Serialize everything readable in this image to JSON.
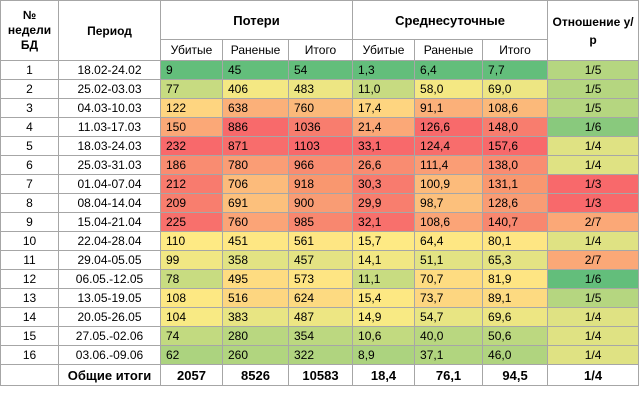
{
  "header": {
    "week_no": "№ недели БД",
    "period": "Период",
    "losses": "Потери",
    "daily": "Среднесуточные",
    "ratio": "Отношение у/р",
    "killed": "Убитые",
    "wounded": "Раненые",
    "total": "Итого"
  },
  "colors": {
    "green": "#63be7b",
    "yellow": "#ffeb84",
    "red": "#f8696b"
  },
  "rows": [
    {
      "week": "1",
      "period": "18.02-24.02",
      "killed": "9",
      "wounded": "45",
      "total": "54",
      "d_killed": "1,3",
      "d_wounded": "6,4",
      "d_total": "7,7",
      "ratio": "1/5",
      "bg": [
        "#63be7b",
        "#63be7b",
        "#63be7b",
        "#63be7b",
        "#63be7b",
        "#63be7b",
        "#b5d680"
      ]
    },
    {
      "week": "2",
      "period": "25.02-03.03",
      "killed": "77",
      "wounded": "406",
      "total": "483",
      "d_killed": "11,0",
      "d_wounded": "58,0",
      "d_total": "69,0",
      "ratio": "1/5",
      "bg": [
        "#c7db81",
        "#f4e883",
        "#ede683",
        "#c7db81",
        "#f4e883",
        "#ede683",
        "#b5d680"
      ]
    },
    {
      "week": "3",
      "period": "04.03-10.03",
      "killed": "122",
      "wounded": "638",
      "total": "760",
      "d_killed": "17,4",
      "d_wounded": "91,1",
      "d_total": "108,6",
      "ratio": "1/5",
      "bg": [
        "#fed580",
        "#fbb079",
        "#fbb97a",
        "#fed580",
        "#fbb079",
        "#fbb97a",
        "#b5d680"
      ]
    },
    {
      "week": "4",
      "period": "11.03-17.03",
      "killed": "150",
      "wounded": "886",
      "total": "1036",
      "d_killed": "21,4",
      "d_wounded": "126,6",
      "d_total": "148,0",
      "ratio": "1/6",
      "bg": [
        "#fba877",
        "#f86a6b",
        "#f87d6e",
        "#fba877",
        "#f86a6b",
        "#f87d6e",
        "#89c97d"
      ]
    },
    {
      "week": "5",
      "period": "18.03-24.03",
      "killed": "232",
      "wounded": "871",
      "total": "1103",
      "d_killed": "33,1",
      "d_wounded": "124,4",
      "d_total": "157,6",
      "ratio": "1/4",
      "bg": [
        "#f8696b",
        "#f86d6c",
        "#f8696b",
        "#f8696b",
        "#f86d6c",
        "#f8696b",
        "#dfe283"
      ]
    },
    {
      "week": "6",
      "period": "25.03-31.03",
      "killed": "186",
      "wounded": "780",
      "total": "966",
      "d_killed": "26,6",
      "d_wounded": "111,4",
      "d_total": "138,0",
      "ratio": "1/4",
      "bg": [
        "#f98c71",
        "#fa9d75",
        "#f98c71",
        "#f98c71",
        "#fa9d75",
        "#f98c71",
        "#dfe283"
      ]
    },
    {
      "week": "7",
      "period": "01.04-07.04",
      "killed": "212",
      "wounded": "706",
      "total": "918",
      "d_killed": "30,3",
      "d_wounded": "100,9",
      "d_total": "131,1",
      "ratio": "1/3",
      "bg": [
        "#f87b6e",
        "#fcbb7b",
        "#f9976f",
        "#f87b6e",
        "#fcbb7b",
        "#f9976f",
        "#f8696b"
      ]
    },
    {
      "week": "8",
      "period": "08.04-14.04",
      "killed": "209",
      "wounded": "691",
      "total": "900",
      "d_killed": "29,9",
      "d_wounded": "98,7",
      "d_total": "128,6",
      "ratio": "1/3",
      "bg": [
        "#f87e6e",
        "#fcc07c",
        "#f99c74",
        "#f87e6e",
        "#fcc07c",
        "#f99c74",
        "#f8696b"
      ]
    },
    {
      "week": "9",
      "period": "15.04-21.04",
      "killed": "225",
      "wounded": "760",
      "total": "985",
      "d_killed": "32,1",
      "d_wounded": "108,6",
      "d_total": "140,7",
      "ratio": "2/7",
      "bg": [
        "#f8706c",
        "#fba477",
        "#f8876f",
        "#f8706c",
        "#fba477",
        "#f8876f",
        "#fba877"
      ]
    },
    {
      "week": "10",
      "period": "22.04-28.04",
      "killed": "110",
      "wounded": "451",
      "total": "561",
      "d_killed": "15,7",
      "d_wounded": "64,4",
      "d_total": "80,1",
      "ratio": "1/4",
      "bg": [
        "#feea84",
        "#fee783",
        "#fee683",
        "#feea84",
        "#fee783",
        "#fee683",
        "#dfe283"
      ]
    },
    {
      "week": "11",
      "period": "29.04-05.05",
      "killed": "99",
      "wounded": "358",
      "total": "457",
      "d_killed": "14,1",
      "d_wounded": "51,1",
      "d_total": "65,3",
      "ratio": "2/7",
      "bg": [
        "#f1e783",
        "#e2e383",
        "#e4e383",
        "#f1e783",
        "#e2e383",
        "#e4e383",
        "#fba877"
      ]
    },
    {
      "week": "12",
      "period": "06.05.-12.05",
      "killed": "78",
      "wounded": "495",
      "total": "573",
      "d_killed": "11,1",
      "d_wounded": "70,7",
      "d_total": "81,9",
      "ratio": "1/6",
      "bg": [
        "#c8dc81",
        "#fedc81",
        "#fee583",
        "#c8dc81",
        "#fedc81",
        "#fee583",
        "#63be7b"
      ]
    },
    {
      "week": "13",
      "period": "13.05-19.05",
      "killed": "108",
      "wounded": "516",
      "total": "624",
      "d_killed": "15,4",
      "d_wounded": "73,7",
      "d_total": "89,1",
      "ratio": "1/5",
      "bg": [
        "#fde883",
        "#fdd680",
        "#fdda81",
        "#fde883",
        "#fdd680",
        "#fdda81",
        "#b5d680"
      ]
    },
    {
      "week": "14",
      "period": "20.05-26.05",
      "killed": "104",
      "wounded": "383",
      "total": "487",
      "d_killed": "14,9",
      "d_wounded": "54,7",
      "d_total": "69,6",
      "ratio": "1/4",
      "bg": [
        "#f8ea84",
        "#e8e583",
        "#ede683",
        "#f8ea84",
        "#e8e583",
        "#ede683",
        "#dfe283"
      ]
    },
    {
      "week": "15",
      "period": "27.05.-02.06",
      "killed": "74",
      "wounded": "280",
      "total": "354",
      "d_killed": "10,6",
      "d_wounded": "40,0",
      "d_total": "50,6",
      "ratio": "1/4",
      "bg": [
        "#c2da80",
        "#b9d780",
        "#bcd880",
        "#c2da80",
        "#b9d780",
        "#bcd880",
        "#dfe283"
      ]
    },
    {
      "week": "16",
      "period": "03.06.-09.06",
      "killed": "62",
      "wounded": "260",
      "total": "322",
      "d_killed": "8,9",
      "d_wounded": "37,1",
      "d_total": "46,0",
      "ratio": "1/4",
      "bg": [
        "#acd37f",
        "#b1d57f",
        "#b0d47f",
        "#acd37f",
        "#b1d57f",
        "#b0d47f",
        "#dfe283"
      ]
    }
  ],
  "totals": {
    "label": "Общие итоги",
    "killed": "2057",
    "wounded": "8526",
    "total": "10583",
    "d_killed": "18,4",
    "d_wounded": "76,1",
    "d_total": "94,5",
    "ratio": "1/4"
  }
}
